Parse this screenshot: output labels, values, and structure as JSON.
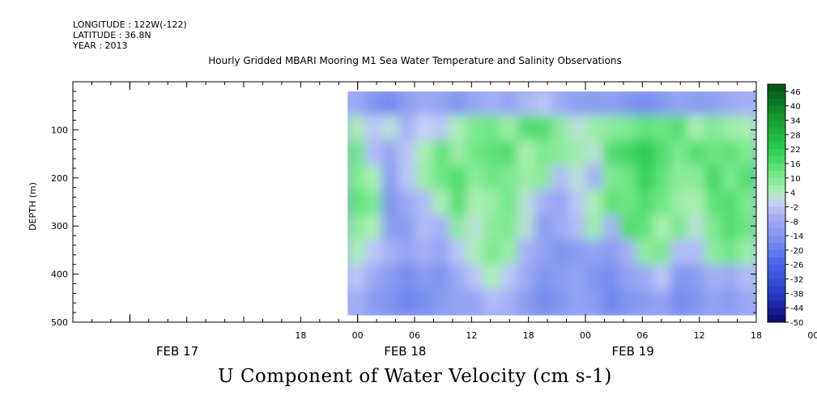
{
  "header": {
    "longitude": "LONGITUDE : 122W(-122)",
    "latitude": "LATITUDE : 36.8N",
    "year": "YEAR : 2013"
  },
  "chart_data": {
    "type": "heatmap",
    "title": "Hourly Gridded MBARI Mooring M1 Sea Water Temperature and Salinity Observations",
    "xlabel": "U Component of Water Velocity (cm s-1)",
    "ylabel": "DEPTH (m)",
    "x_axis": {
      "hour_ticks": [
        "18",
        "00",
        "06",
        "12",
        "18",
        "00",
        "06",
        "12",
        "18",
        "00"
      ],
      "day_labels": [
        "FEB 17",
        "FEB 18",
        "FEB 19"
      ],
      "range_hours": [
        -30,
        42
      ],
      "data_start_hour": -1
    },
    "y_axis": {
      "ticks": [
        100,
        200,
        300,
        400,
        500
      ],
      "range": [
        0,
        500
      ],
      "inverted": true,
      "data_range": [
        20,
        485
      ]
    },
    "colorbar": {
      "labels": [
        46,
        40,
        34,
        28,
        22,
        16,
        10,
        4,
        -2,
        -8,
        -14,
        -20,
        -26,
        -32,
        -38,
        -44,
        -50
      ],
      "range": [
        -50,
        49
      ]
    },
    "value_field": [
      [
        -8,
        -14,
        -17,
        -11,
        -8,
        -10,
        -14,
        -9,
        -6,
        -10,
        -5,
        -2,
        -8,
        -11,
        -12,
        -11,
        -14,
        -16,
        -13,
        -10,
        -12,
        -11,
        -8,
        -6
      ],
      [
        4,
        -2,
        2,
        -6,
        0,
        -2,
        4,
        10,
        12,
        6,
        16,
        16,
        8,
        2,
        6,
        8,
        10,
        14,
        12,
        16,
        4,
        10,
        6,
        4
      ],
      [
        12,
        -4,
        -10,
        -2,
        4,
        14,
        6,
        12,
        14,
        16,
        4,
        10,
        8,
        6,
        2,
        16,
        18,
        22,
        16,
        10,
        16,
        12,
        14,
        10
      ],
      [
        10,
        4,
        -12,
        -2,
        6,
        12,
        16,
        8,
        12,
        10,
        6,
        8,
        -4,
        2,
        -6,
        10,
        12,
        20,
        14,
        8,
        8,
        18,
        10,
        16
      ],
      [
        14,
        10,
        -14,
        -8,
        -4,
        4,
        16,
        4,
        6,
        12,
        2,
        -6,
        -10,
        -2,
        4,
        14,
        12,
        16,
        12,
        6,
        4,
        14,
        16,
        10
      ],
      [
        8,
        4,
        -12,
        -12,
        -4,
        -6,
        8,
        2,
        8,
        10,
        2,
        -12,
        -8,
        -4,
        6,
        -6,
        16,
        14,
        4,
        10,
        2,
        10,
        16,
        12
      ],
      [
        4,
        -2,
        -6,
        -10,
        -6,
        -10,
        -2,
        4,
        10,
        6,
        -6,
        -10,
        -14,
        -12,
        -10,
        -12,
        -6,
        8,
        10,
        -4,
        -4,
        8,
        12,
        6
      ],
      [
        -2,
        -8,
        -12,
        -16,
        -12,
        -14,
        -8,
        -2,
        4,
        -2,
        -8,
        -14,
        -12,
        -10,
        -14,
        -16,
        -10,
        -8,
        -2,
        -14,
        -12,
        -6,
        -8,
        -4
      ],
      [
        -6,
        -12,
        -14,
        -18,
        -16,
        -12,
        -10,
        -10,
        -4,
        -6,
        -12,
        -16,
        -14,
        -10,
        -12,
        -18,
        -14,
        -12,
        -10,
        -16,
        -14,
        -10,
        -12,
        -8
      ]
    ]
  }
}
